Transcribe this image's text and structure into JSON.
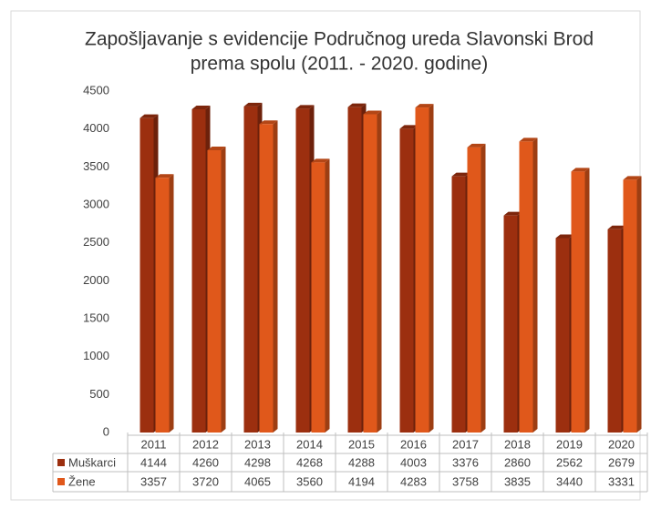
{
  "chart_data": {
    "type": "bar3d",
    "title": [
      "Zapošljavanje s evidencije Područnog ureda Slavonski Brod",
      "prema spolu (2011. - 2020. godine)"
    ],
    "categories": [
      "2011",
      "2012",
      "2013",
      "2014",
      "2015",
      "2016",
      "2017",
      "2018",
      "2019",
      "2020"
    ],
    "series": [
      {
        "name": "Muškarci",
        "color": "#9c2f0f",
        "values": [
          4144,
          4260,
          4298,
          4268,
          4288,
          4003,
          3376,
          2860,
          2562,
          2679
        ]
      },
      {
        "name": "Žene",
        "color": "#e0581b",
        "values": [
          3357,
          3720,
          4065,
          3560,
          4194,
          4283,
          3758,
          3835,
          3440,
          3331
        ]
      }
    ],
    "ylim": [
      0,
      4500
    ],
    "yticks": [
      0,
      500,
      1000,
      1500,
      2000,
      2500,
      3000,
      3500,
      4000,
      4500
    ],
    "grid": false
  }
}
